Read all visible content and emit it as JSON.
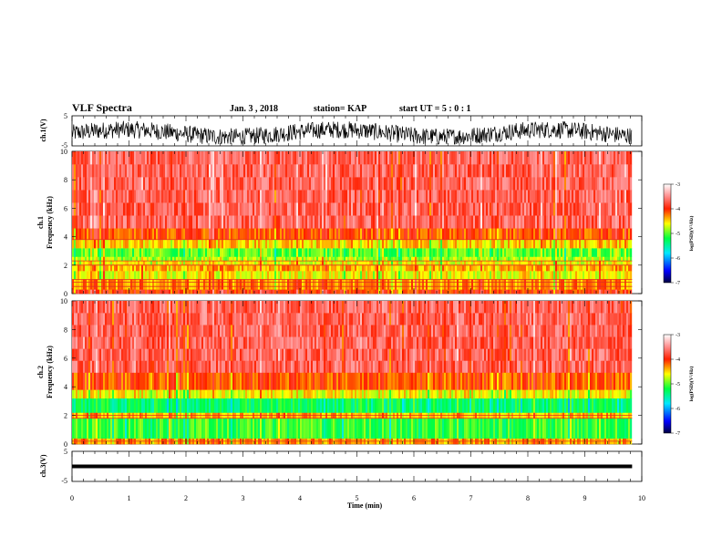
{
  "chart_data": {
    "type": "heatmap",
    "title": "VLF Spectra",
    "date": "Jan. 3 , 2018",
    "station": "station= KAP",
    "start_ut": "start UT =  5 : 0 : 1",
    "time_axis": {
      "label": "Time (min)",
      "range": [
        0,
        10
      ],
      "ticks": [
        "0",
        "1",
        "2",
        "3",
        "4",
        "5",
        "6",
        "7",
        "8",
        "9",
        "10"
      ],
      "data_end": 9.83
    },
    "panels": [
      {
        "kind": "waveform",
        "ylabel": "ch.1(V)",
        "ylim": [
          -5,
          5
        ],
        "yticks": [
          "5",
          "-5"
        ],
        "description_level": "noisy signal roughly between -4 V and 3 V"
      },
      {
        "kind": "spectrogram",
        "ylabel": "Frequency (kHz)",
        "ylabel_prefix": "ch.1",
        "ylim": [
          0,
          10
        ],
        "yticks": [
          "0",
          "2",
          "4",
          "6",
          "8",
          "10"
        ],
        "bands": [
          {
            "from": 0.0,
            "to": 0.3,
            "log_psd": -4.0
          },
          {
            "from": 0.3,
            "to": 1.0,
            "log_psd": -4.3
          },
          {
            "from": 1.0,
            "to": 1.6,
            "log_psd": -4.6
          },
          {
            "from": 1.6,
            "to": 2.0,
            "log_psd": -4.4
          },
          {
            "from": 2.0,
            "to": 2.3,
            "log_psd": -4.6
          },
          {
            "from": 2.3,
            "to": 2.6,
            "log_psd": -4.8
          },
          {
            "from": 2.6,
            "to": 3.2,
            "log_psd": -5.0
          },
          {
            "from": 3.2,
            "to": 3.8,
            "log_psd": -4.5
          },
          {
            "from": 3.8,
            "to": 4.6,
            "log_psd": -4.1
          },
          {
            "from": 4.6,
            "to": 10.0,
            "log_psd": -3.7
          }
        ],
        "lines_khz": [
          0.5,
          0.8,
          1.0,
          2.0,
          2.3,
          3.8
        ]
      },
      {
        "kind": "spectrogram",
        "ylabel": "Frequency (kHz)",
        "ylabel_prefix": "ch.2",
        "ylim": [
          0,
          10
        ],
        "yticks": [
          "0",
          "2",
          "4",
          "6",
          "8",
          "10"
        ],
        "bands": [
          {
            "from": 0.0,
            "to": 0.4,
            "log_psd": -4.3
          },
          {
            "from": 0.4,
            "to": 1.8,
            "log_psd": -5.1
          },
          {
            "from": 1.8,
            "to": 2.2,
            "log_psd": -4.4
          },
          {
            "from": 2.2,
            "to": 3.2,
            "log_psd": -5.3
          },
          {
            "from": 3.2,
            "to": 3.8,
            "log_psd": -4.6
          },
          {
            "from": 3.8,
            "to": 5.0,
            "log_psd": -4.1
          },
          {
            "from": 5.0,
            "to": 10.0,
            "log_psd": -3.7
          }
        ],
        "lines_khz": [
          0.2,
          1.8,
          2.0
        ]
      },
      {
        "kind": "waveform",
        "ylabel": "ch.3(V)",
        "ylim": [
          -5,
          5
        ],
        "yticks": [
          "5",
          "-5"
        ],
        "description_level": "flat line at about 0 V"
      }
    ],
    "colorbar": {
      "label": "log(PSD)(V²/Hz)",
      "range": [
        -7,
        -3
      ],
      "ticks": [
        "-3",
        "-4",
        "-5",
        "-6",
        "-7"
      ],
      "colormap": [
        "#000080",
        "#0000ff",
        "#00ffff",
        "#00ff00",
        "#ffff00",
        "#ff0000",
        "#ffffff"
      ]
    }
  }
}
